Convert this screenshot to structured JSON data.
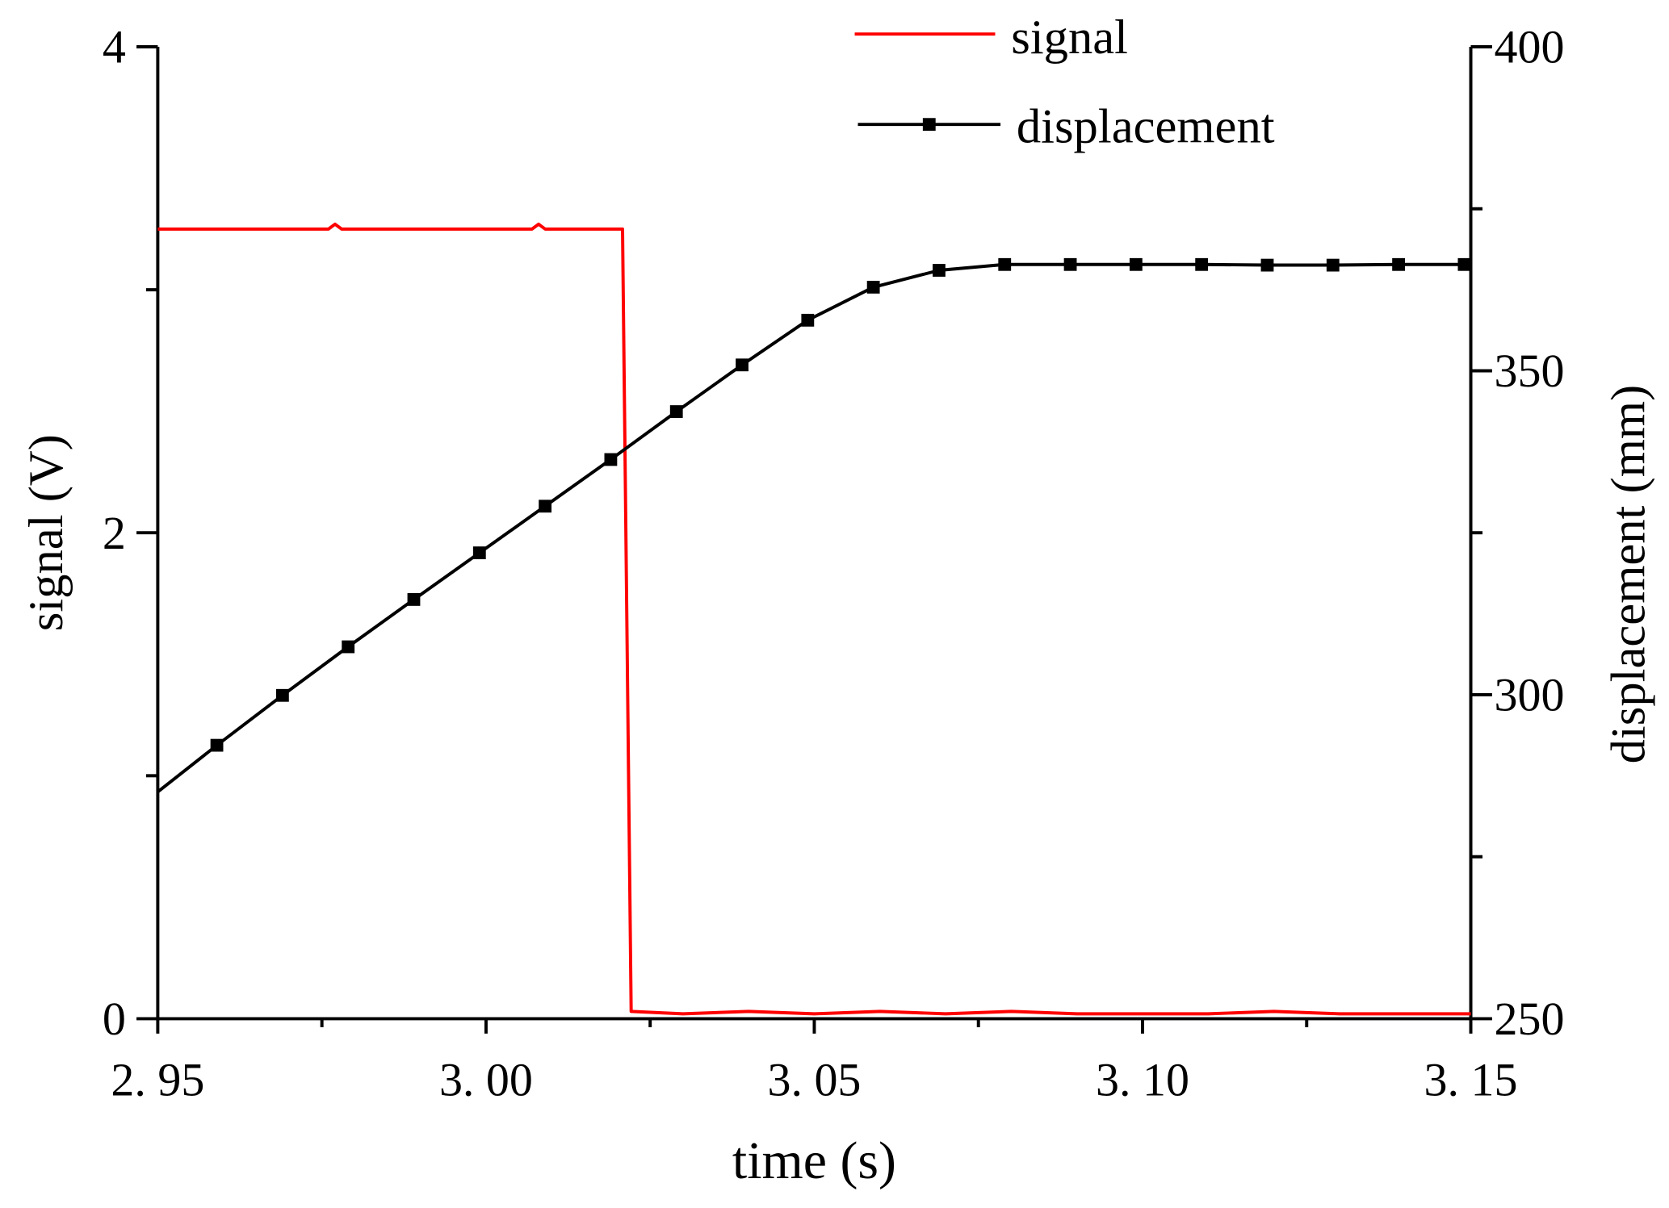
{
  "chart_data": {
    "type": "line",
    "title": "",
    "xlabel": "time (s)",
    "ylabel_left": "signal (V)",
    "ylabel_right": "displacement (mm)",
    "xlim": [
      2.95,
      3.15
    ],
    "ylim_left": [
      0,
      4
    ],
    "ylim_right": [
      250,
      400
    ],
    "x_ticks": [
      "2. 95",
      "3. 00",
      "3. 05",
      "3. 10",
      "3. 15"
    ],
    "x_tick_values": [
      2.95,
      3.0,
      3.05,
      3.1,
      3.15
    ],
    "y_left_ticks": [
      "0",
      "2",
      "4"
    ],
    "y_left_tick_values": [
      0,
      2,
      4
    ],
    "y_right_ticks": [
      "250",
      "300",
      "350",
      "400"
    ],
    "y_right_tick_values": [
      250,
      300,
      350,
      400
    ],
    "grid": false,
    "legend_position": "top-center",
    "series": [
      {
        "name": "signal",
        "axis": "left",
        "color": "#ff0000",
        "marker": "none",
        "x": [
          2.95,
          2.976,
          2.977,
          2.978,
          3.007,
          3.008,
          3.009,
          3.0208,
          3.0221,
          3.03,
          3.04,
          3.05,
          3.06,
          3.07,
          3.08,
          3.09,
          3.1,
          3.11,
          3.12,
          3.13,
          3.14,
          3.15
        ],
        "y": [
          3.25,
          3.25,
          3.27,
          3.25,
          3.25,
          3.27,
          3.25,
          3.25,
          0.03,
          0.02,
          0.03,
          0.02,
          0.03,
          0.02,
          0.03,
          0.02,
          0.02,
          0.02,
          0.03,
          0.02,
          0.02,
          0.02
        ]
      },
      {
        "name": "displacement",
        "axis": "right",
        "color": "#000000",
        "marker": "square",
        "x": [
          2.95,
          2.959,
          2.969,
          2.979,
          2.989,
          2.999,
          3.009,
          3.019,
          3.029,
          3.039,
          3.049,
          3.059,
          3.069,
          3.079,
          3.089,
          3.099,
          3.109,
          3.119,
          3.129,
          3.139,
          3.149
        ],
        "y": [
          285.0,
          292.2,
          299.9,
          307.4,
          314.7,
          321.9,
          329.1,
          336.3,
          343.7,
          350.9,
          357.8,
          362.9,
          365.5,
          366.4,
          366.4,
          366.4,
          366.4,
          366.3,
          366.3,
          366.4,
          366.4
        ],
        "marker_x": [
          2.959,
          2.969,
          2.979,
          2.989,
          2.999,
          3.009,
          3.019,
          3.029,
          3.039,
          3.049,
          3.059,
          3.069,
          3.079,
          3.089,
          3.099,
          3.109,
          3.119,
          3.129,
          3.139,
          3.149
        ]
      }
    ]
  }
}
